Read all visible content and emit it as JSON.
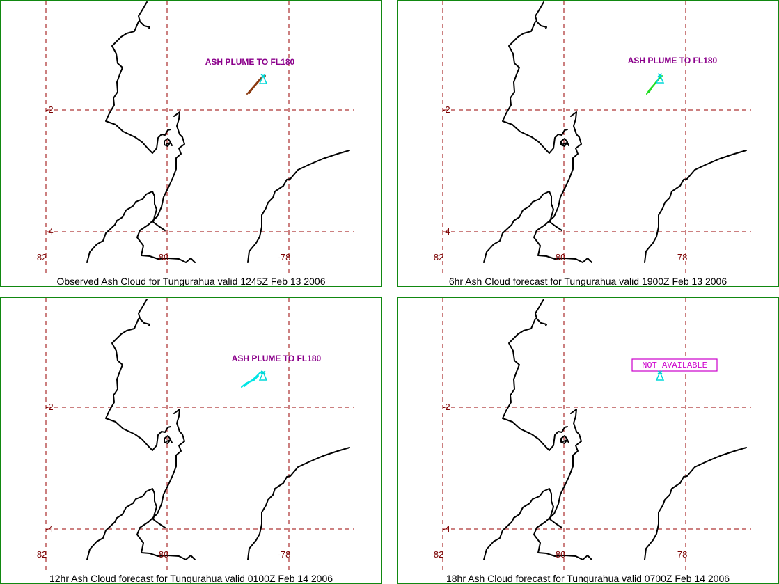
{
  "colors": {
    "frame": "#118811",
    "coastline": "#000000",
    "grid": "#990000",
    "tick_label": "#7a0000",
    "plume_label": "#8b008b",
    "not_available": "#cc00cc",
    "volcano_marker": "#00d8d8"
  },
  "tick_labels": {
    "lat_2": "-2",
    "lat_4": "-4",
    "lon_82": "-82",
    "lon_80": "-80",
    "lon_78": "-78"
  },
  "panels": [
    {
      "caption": "Observed Ash Cloud for Tungurahua valid 1245Z Feb 13 2006",
      "label": "ASH PLUME TO FL180",
      "plume_color": "#8b3a10"
    },
    {
      "caption": "6hr Ash Cloud forecast for Tungurahua valid 1900Z Feb 13 2006",
      "label": "ASH PLUME TO FL180",
      "plume_color": "#22dd22"
    },
    {
      "caption": "12hr Ash Cloud forecast for Tungurahua valid 0100Z Feb 14 2006",
      "label": "ASH PLUME TO FL180",
      "plume_color": "#00e5e5"
    },
    {
      "caption": "18hr Ash Cloud forecast for Tungurahua valid 0700Z Feb 14 2006",
      "label": "NOT AVAILABLE",
      "plume_color": ""
    }
  ]
}
